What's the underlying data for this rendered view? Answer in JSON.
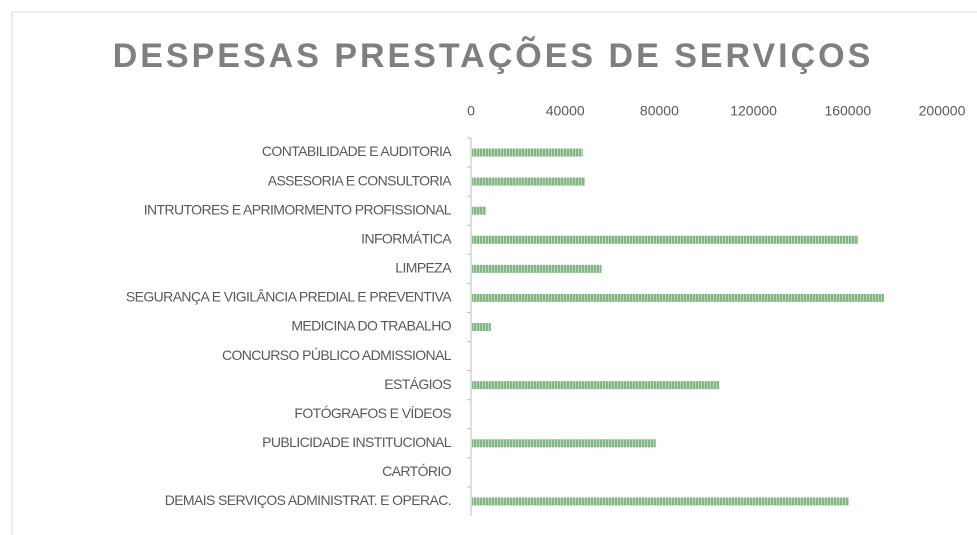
{
  "chart_data": {
    "type": "bar",
    "orientation": "horizontal",
    "title": "DESPESAS PRESTAÇÕES  DE SERVIÇOS",
    "categories": [
      "CONTABILIDADE E AUDITORIA",
      "ASSESORIA E CONSULTORIA",
      "INTRUTORES E APRIMORMENTO PROFISSIONAL",
      "INFORMÁTICA",
      "LIMPEZA",
      "SEGURANÇA E VIGILÂNCIA PREDIAL E PREVENTIVA",
      "MEDICINA DO TRABALHO",
      "CONCURSO PÚBLICO ADMISSIONAL",
      "ESTÁGIOS",
      "FOTÓGRAFOS E VÍDEOS",
      "PUBLICIDADE INSTITUCIONAL",
      "CARTÓRIO",
      "DEMAIS SERVIÇOS ADMINISTRAT. E OPERAC."
    ],
    "values": [
      47000,
      48000,
      6000,
      164000,
      55000,
      175000,
      8000,
      0,
      105000,
      0,
      78000,
      0,
      160000
    ],
    "color": "#84b584",
    "xlim": [
      0,
      200000
    ],
    "xticks": [
      0,
      40000,
      80000,
      120000,
      160000,
      200000
    ],
    "grid": false
  }
}
